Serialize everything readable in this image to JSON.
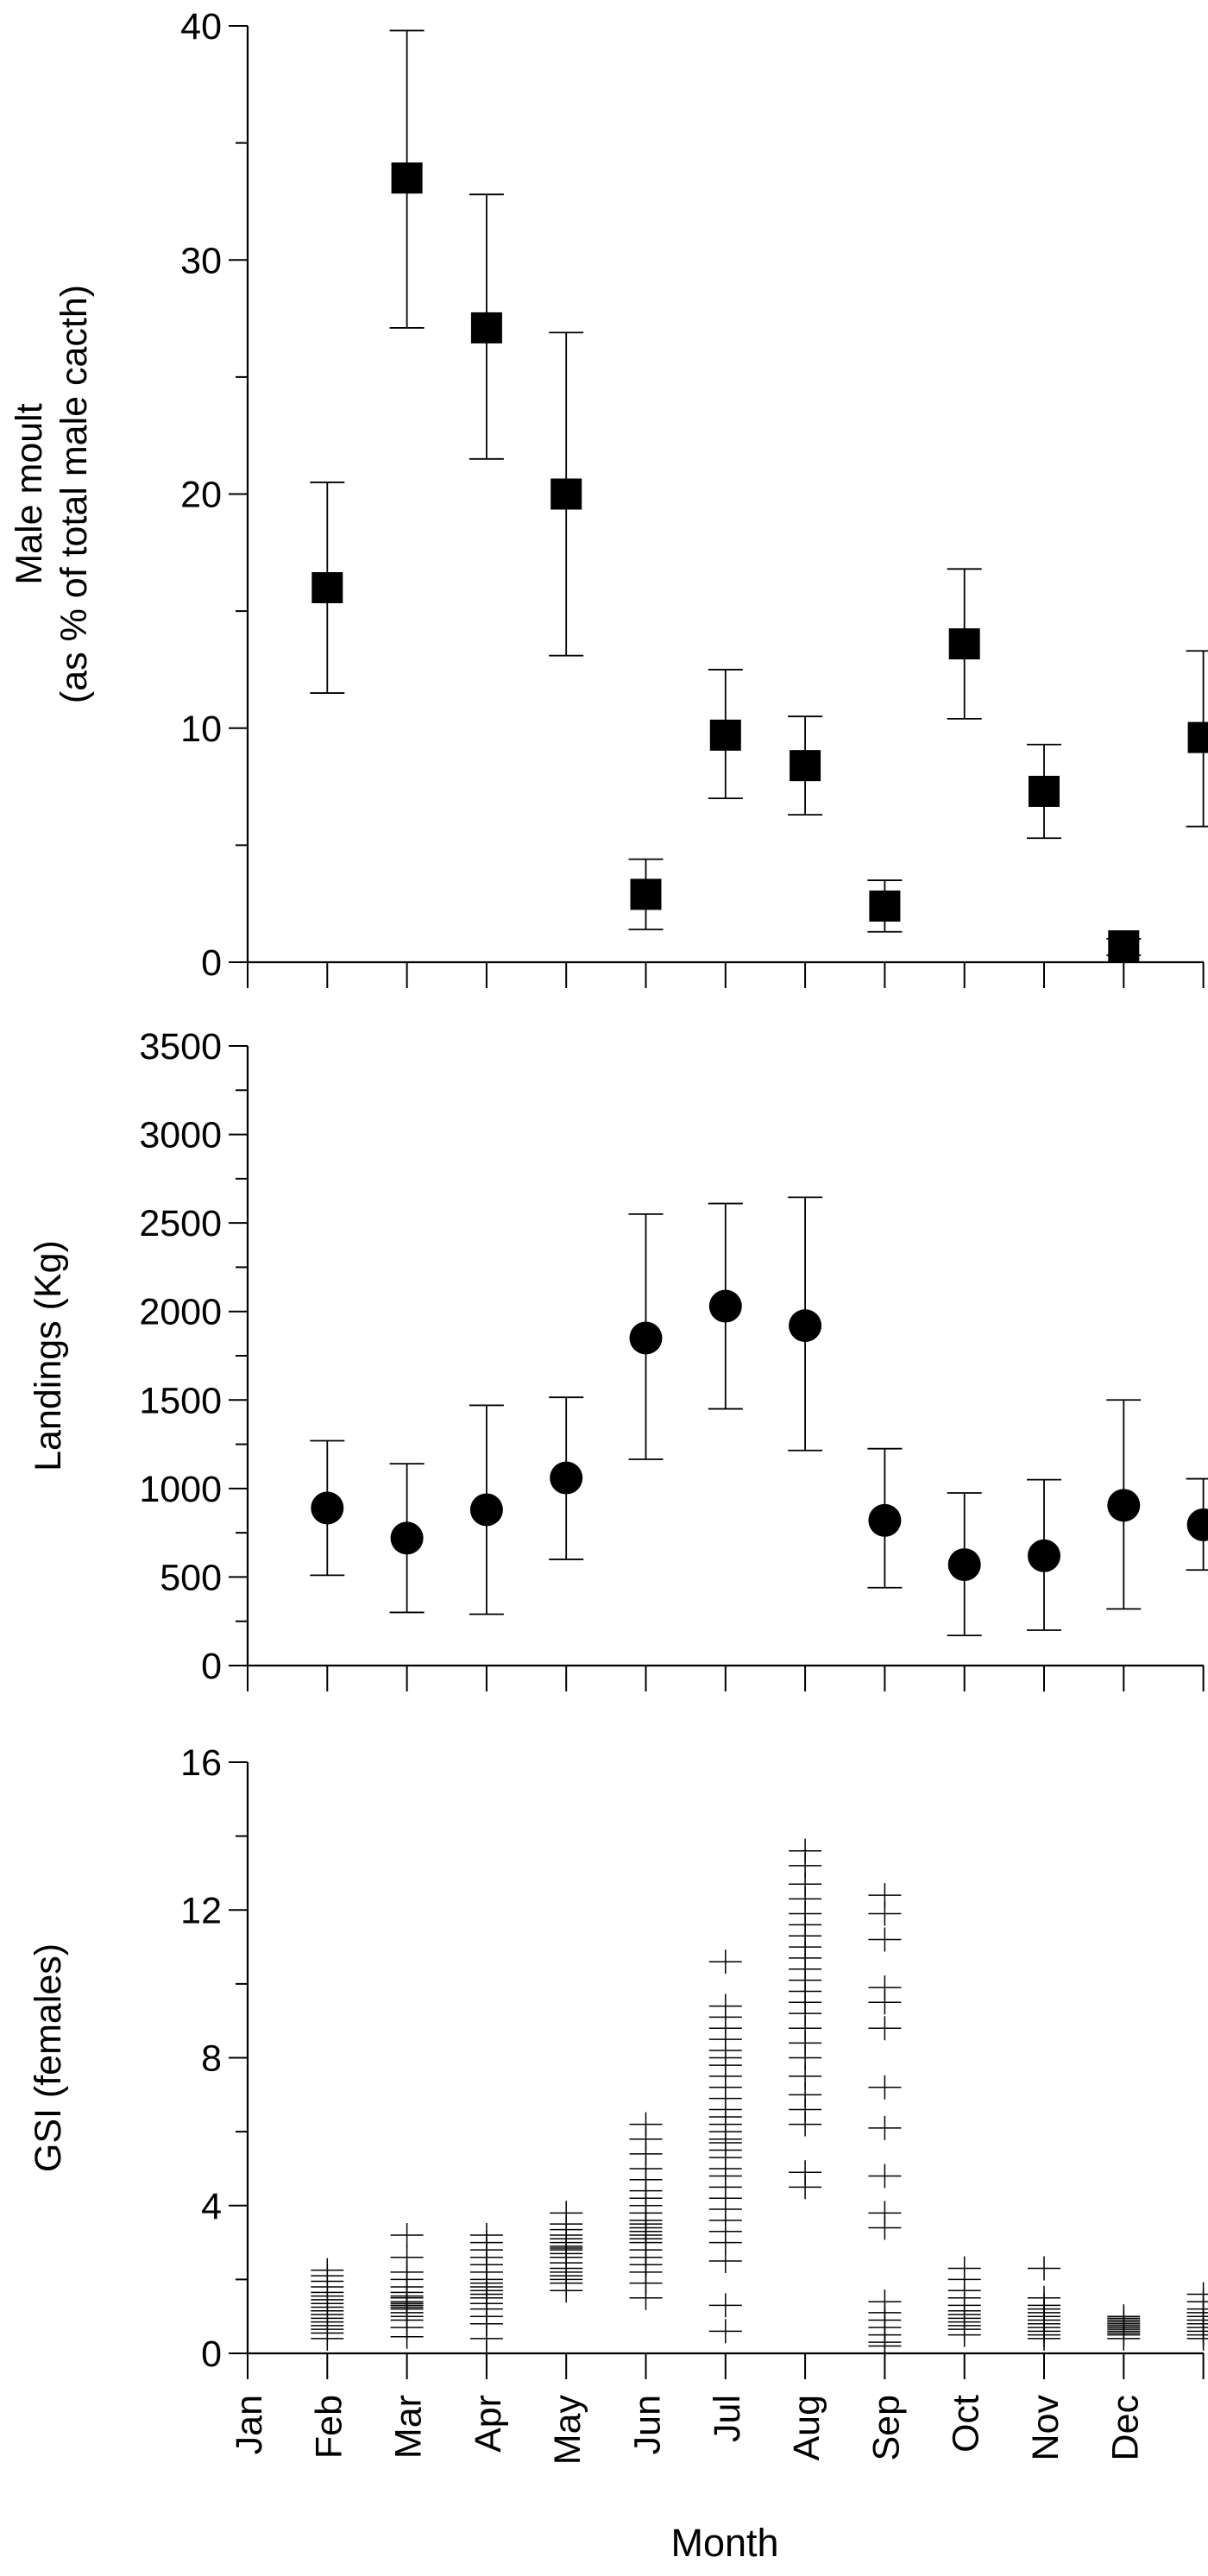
{
  "chart_data": [
    {
      "type": "scatter",
      "ylabel_line1": "Male moult",
      "ylabel_line2": "(as % of total male cacth)",
      "ylim": [
        0,
        40
      ],
      "yticks": [
        "0",
        "10",
        "20",
        "30",
        "40"
      ],
      "marker": "square",
      "errorbars": true,
      "x": [
        1,
        2,
        3,
        4,
        5,
        6,
        7,
        8,
        9,
        10,
        11,
        12
      ],
      "y": [
        16,
        33.5,
        27.1,
        20,
        2.9,
        9.7,
        8.4,
        2.4,
        13.6,
        7.3,
        0.7,
        9.6
      ],
      "err_low": [
        11.5,
        27.1,
        21.5,
        13.1,
        1.4,
        7.0,
        6.3,
        1.3,
        10.4,
        5.3,
        0.3,
        5.8
      ],
      "err_high": [
        20.5,
        39.8,
        32.8,
        26.9,
        4.4,
        12.5,
        10.5,
        3.5,
        16.8,
        9.3,
        1.0,
        13.3
      ]
    },
    {
      "type": "scatter",
      "ylabel": "Landings (Kg)",
      "ylim": [
        0,
        3500
      ],
      "yticks": [
        "0",
        "500",
        "1000",
        "1500",
        "2000",
        "2500",
        "3000",
        "3500"
      ],
      "marker": "circle",
      "errorbars": true,
      "x": [
        1,
        2,
        3,
        4,
        5,
        6,
        7,
        8,
        9,
        10,
        11,
        12
      ],
      "y": [
        890,
        720,
        880,
        1060,
        1850,
        2030,
        1920,
        820,
        570,
        620,
        905,
        795
      ],
      "err_low": [
        510,
        300,
        290,
        600,
        1165,
        1450,
        1215,
        440,
        170,
        200,
        320,
        540
      ],
      "err_high": [
        1270,
        1140,
        1470,
        1515,
        2550,
        2610,
        2645,
        1225,
        975,
        1050,
        1500,
        1055
      ]
    },
    {
      "type": "scatter",
      "ylabel": "GSI (females)",
      "ylim": [
        0,
        16
      ],
      "yticks": [
        "0",
        "4",
        "8",
        "12",
        "16"
      ],
      "marker": "plus",
      "xlabel": "Month",
      "xtick_labels": [
        "Jan",
        "Feb",
        "Mar",
        "Apr",
        "May",
        "Jun",
        "Jul",
        "Aug",
        "Sep",
        "Oct",
        "Nov",
        "Dec"
      ],
      "points": [
        {
          "x": 1,
          "y": [
            0.4,
            0.55,
            0.65,
            0.75,
            0.85,
            0.95,
            1.05,
            1.15,
            1.25,
            1.35,
            1.45,
            1.55,
            1.65,
            1.8,
            1.95,
            2.1,
            2.25
          ]
        },
        {
          "x": 2,
          "y": [
            0.45,
            0.7,
            0.9,
            1.0,
            1.1,
            1.2,
            1.25,
            1.3,
            1.35,
            1.4,
            1.5,
            1.55,
            1.65,
            1.8,
            2.0,
            2.2,
            2.6,
            3.2
          ]
        },
        {
          "x": 3,
          "y": [
            0.0,
            0.4,
            0.8,
            1.0,
            1.2,
            1.35,
            1.5,
            1.6,
            1.7,
            1.8,
            1.9,
            2.0,
            2.2,
            2.4,
            2.6,
            2.8,
            3.0,
            3.2
          ]
        },
        {
          "x": 4,
          "y": [
            1.7,
            1.9,
            2.0,
            2.1,
            2.2,
            2.3,
            2.45,
            2.6,
            2.7,
            2.8,
            2.85,
            2.9,
            3.0,
            3.1,
            3.2,
            3.35,
            3.5,
            3.8
          ]
        },
        {
          "x": 5,
          "y": [
            1.5,
            1.9,
            2.2,
            2.4,
            2.6,
            2.8,
            3.0,
            3.1,
            3.2,
            3.3,
            3.4,
            3.5,
            3.6,
            3.8,
            4.0,
            4.2,
            4.4,
            4.7,
            5.0,
            5.4,
            5.8,
            6.2
          ]
        },
        {
          "x": 6,
          "y": [
            0.6,
            1.3,
            2.5,
            3.0,
            3.3,
            3.6,
            3.9,
            4.2,
            4.5,
            4.8,
            5.0,
            5.3,
            5.5,
            5.7,
            5.8,
            6.0,
            6.2,
            6.4,
            6.6,
            6.9,
            7.2,
            7.5,
            7.8,
            8.0,
            8.2,
            8.5,
            8.8,
            9.1,
            9.4,
            10.6
          ]
        },
        {
          "x": 7,
          "y": [
            4.5,
            4.9,
            6.2,
            6.6,
            7.0,
            7.5,
            8.0,
            8.4,
            8.8,
            9.2,
            9.5,
            9.8,
            10.1,
            10.4,
            10.7,
            11.0,
            11.3,
            11.6,
            11.9,
            12.3,
            12.7,
            13.2,
            13.6
          ]
        },
        {
          "x": 8,
          "y": [
            0.2,
            0.3,
            0.5,
            0.7,
            0.9,
            1.1,
            1.4,
            3.4,
            3.8,
            4.8,
            6.1,
            7.2,
            8.8,
            9.5,
            9.9,
            11.2,
            11.9,
            12.4
          ]
        },
        {
          "x": 9,
          "y": [
            0.5,
            0.65,
            0.75,
            0.85,
            0.95,
            1.05,
            1.15,
            1.3,
            1.5,
            1.7,
            2.0,
            2.3
          ]
        },
        {
          "x": 10,
          "y": [
            0.4,
            0.5,
            0.6,
            0.7,
            0.8,
            0.9,
            1.0,
            1.1,
            1.2,
            1.3,
            1.5,
            2.3
          ]
        },
        {
          "x": 11,
          "y": [
            0.4,
            0.5,
            0.55,
            0.6,
            0.65,
            0.7,
            0.75,
            0.8,
            0.85,
            0.9,
            0.95,
            1.0
          ]
        },
        {
          "x": 12,
          "y": [
            0.4,
            0.5,
            0.6,
            0.7,
            0.8,
            0.9,
            1.0,
            1.1,
            1.2,
            1.4,
            1.6
          ]
        }
      ]
    }
  ]
}
